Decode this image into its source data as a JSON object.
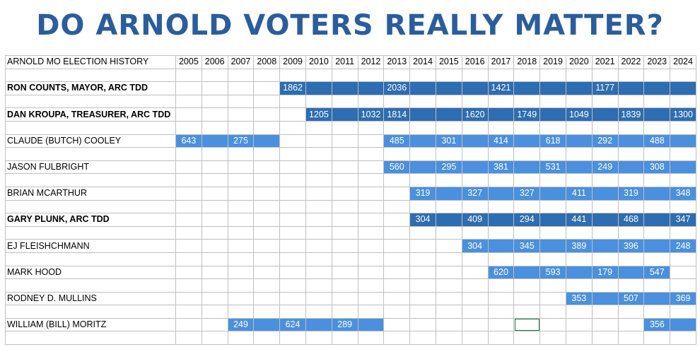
{
  "title": "DO ARNOLD VOTERS REALLY MATTER?",
  "colors": {
    "title": "#2b5d9c",
    "dark_fill": "#2e6db1",
    "light_fill": "#4a90de",
    "gridline": "#bfbfbf",
    "selection": "#217346"
  },
  "header_label": "ARNOLD MO ELECTION HISTORY",
  "years": [
    "2005",
    "2006",
    "2007",
    "2008",
    "2009",
    "2010",
    "2011",
    "2012",
    "2013",
    "2014",
    "2015",
    "2016",
    "2017",
    "2018",
    "2019",
    "2020",
    "2021",
    "2022",
    "2023",
    "2024"
  ],
  "rows": [
    {
      "name": "RON COUNTS, MAYOR, ARC TDD",
      "bold": true,
      "shade": "dark",
      "cells": [
        "",
        "",
        "",
        "",
        "1862",
        "",
        "",
        "",
        "2036",
        "",
        "",
        "",
        "1421",
        "",
        "",
        "",
        "1177",
        "",
        "",
        ""
      ],
      "filled": [
        false,
        false,
        false,
        false,
        true,
        true,
        true,
        true,
        true,
        true,
        true,
        true,
        true,
        true,
        true,
        true,
        true,
        true,
        true,
        true
      ]
    },
    {
      "name": "DAN KROUPA, TREASURER, ARC TDD",
      "bold": true,
      "shade": "dark",
      "cells": [
        "",
        "",
        "",
        "",
        "",
        "1205",
        "",
        "1032",
        "1814",
        "",
        "",
        "1620",
        "",
        "1749",
        "",
        "1049",
        "",
        "1839",
        "",
        "1300"
      ],
      "filled": [
        false,
        false,
        false,
        false,
        false,
        true,
        true,
        true,
        true,
        true,
        true,
        true,
        true,
        true,
        true,
        true,
        true,
        true,
        true,
        true
      ]
    },
    {
      "name": "CLAUDE (BUTCH) COOLEY",
      "bold": false,
      "shade": "light",
      "cells": [
        "643",
        "",
        "275",
        "",
        "",
        "",
        "",
        "",
        "485",
        "",
        "301",
        "",
        "414",
        "",
        "618",
        "",
        "292",
        "",
        "488",
        ""
      ],
      "filled": [
        true,
        true,
        true,
        true,
        false,
        false,
        false,
        false,
        true,
        true,
        true,
        true,
        true,
        true,
        true,
        true,
        true,
        true,
        true,
        true
      ]
    },
    {
      "name": "JASON FULBRIGHT",
      "bold": false,
      "shade": "light",
      "cells": [
        "",
        "",
        "",
        "",
        "",
        "",
        "",
        "",
        "560",
        "",
        "295",
        "",
        "381",
        "",
        "531",
        "",
        "249",
        "",
        "308",
        ""
      ],
      "filled": [
        false,
        false,
        false,
        false,
        false,
        false,
        false,
        false,
        true,
        true,
        true,
        true,
        true,
        true,
        true,
        true,
        true,
        true,
        true,
        true
      ]
    },
    {
      "name": "BRIAN MCARTHUR",
      "bold": false,
      "shade": "light",
      "cells": [
        "",
        "",
        "",
        "",
        "",
        "",
        "",
        "",
        "",
        "319",
        "",
        "327",
        "",
        "327",
        "",
        "411",
        "",
        "319",
        "",
        "348"
      ],
      "filled": [
        false,
        false,
        false,
        false,
        false,
        false,
        false,
        false,
        false,
        true,
        true,
        true,
        true,
        true,
        true,
        true,
        true,
        true,
        true,
        true
      ]
    },
    {
      "name": "GARY PLUNK, ARC TDD",
      "bold": true,
      "shade": "dark",
      "cells": [
        "",
        "",
        "",
        "",
        "",
        "",
        "",
        "",
        "",
        "304",
        "",
        "409",
        "",
        "294",
        "",
        "441",
        "",
        "468",
        "",
        "347"
      ],
      "filled": [
        false,
        false,
        false,
        false,
        false,
        false,
        false,
        false,
        false,
        true,
        true,
        true,
        true,
        true,
        true,
        true,
        true,
        true,
        true,
        true
      ]
    },
    {
      "name": "EJ FLEISHCHMANN",
      "bold": false,
      "shade": "light",
      "cells": [
        "",
        "",
        "",
        "",
        "",
        "",
        "",
        "",
        "",
        "",
        "",
        "304",
        "",
        "345",
        "",
        "389",
        "",
        "396",
        "",
        "248"
      ],
      "filled": [
        false,
        false,
        false,
        false,
        false,
        false,
        false,
        false,
        false,
        false,
        false,
        true,
        true,
        true,
        true,
        true,
        true,
        true,
        true,
        true
      ]
    },
    {
      "name": "MARK HOOD",
      "bold": false,
      "shade": "light",
      "cells": [
        "",
        "",
        "",
        "",
        "",
        "",
        "",
        "",
        "",
        "",
        "",
        "",
        "620",
        "",
        "593",
        "",
        "179",
        "",
        "547",
        ""
      ],
      "filled": [
        false,
        false,
        false,
        false,
        false,
        false,
        false,
        false,
        false,
        false,
        false,
        false,
        true,
        true,
        true,
        true,
        true,
        true,
        true,
        false
      ]
    },
    {
      "name": "RODNEY D. MULLINS",
      "bold": false,
      "shade": "light",
      "cells": [
        "",
        "",
        "",
        "",
        "",
        "",
        "",
        "",
        "",
        "",
        "",
        "",
        "",
        "",
        "",
        "353",
        "",
        "507",
        "",
        "369"
      ],
      "filled": [
        false,
        false,
        false,
        false,
        false,
        false,
        false,
        false,
        false,
        false,
        false,
        false,
        false,
        false,
        false,
        true,
        true,
        true,
        true,
        true
      ]
    },
    {
      "name": "WILLIAM (BILL) MORITZ",
      "bold": false,
      "shade": "light",
      "cells": [
        "",
        "",
        "249",
        "",
        "624",
        "",
        "289",
        "",
        "",
        "",
        "",
        "",
        "",
        "",
        "",
        "",
        "",
        "",
        "356",
        ""
      ],
      "filled": [
        false,
        false,
        true,
        true,
        true,
        true,
        true,
        true,
        false,
        false,
        false,
        false,
        false,
        false,
        false,
        false,
        false,
        false,
        true,
        true
      ],
      "selected_index": 13
    }
  ]
}
